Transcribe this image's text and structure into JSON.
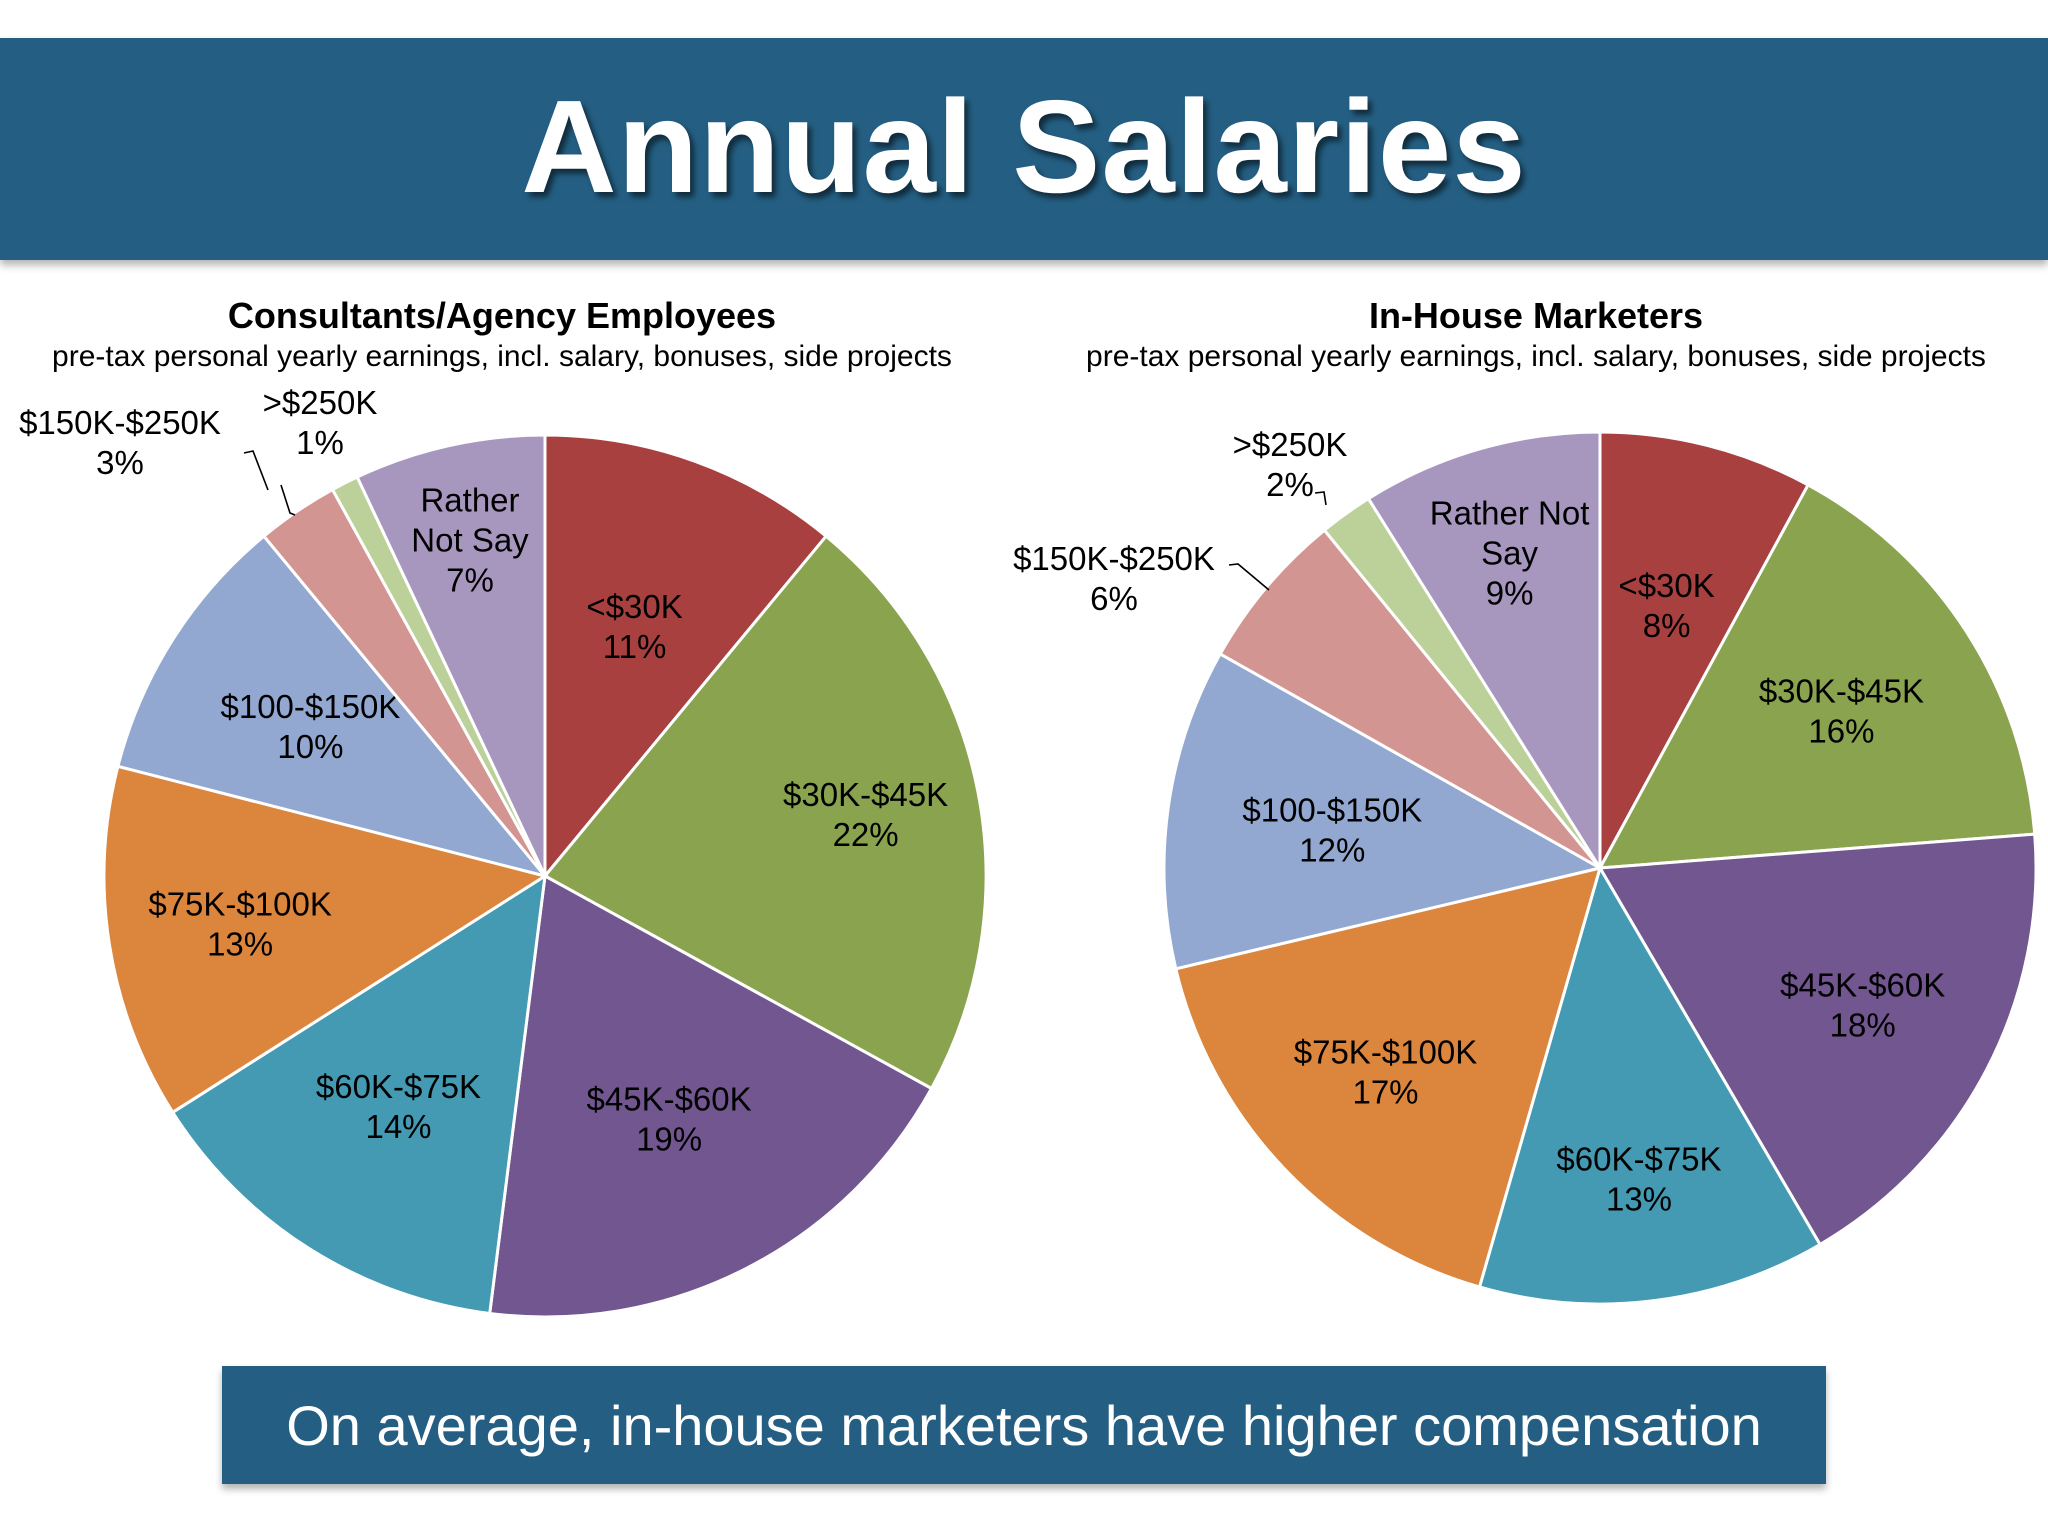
{
  "title": "Annual Salaries",
  "footer": "On average, in-house marketers have higher compensation",
  "chart_data": [
    {
      "type": "pie",
      "title": "Consultants/Agency Employees",
      "subtitle": "pre-tax personal  yearly earnings,  incl. salary, bonuses,  side projects",
      "slices": [
        {
          "label": "<$30K",
          "value": 11,
          "pct": "11%",
          "color": "#a7403f"
        },
        {
          "label": "$30K-$45K",
          "value": 22,
          "pct": "22%",
          "color": "#8aa34f"
        },
        {
          "label": "$45K-$60K",
          "value": 19,
          "pct": "19%",
          "color": "#725690"
        },
        {
          "label": "$60K-$75K",
          "value": 14,
          "pct": "14%",
          "color": "#439ab2"
        },
        {
          "label": "$75K-$100K",
          "value": 13,
          "pct": "13%",
          "color": "#db853d"
        },
        {
          "label": "$100-$150K",
          "value": 10,
          "pct": "10%",
          "color": "#93a8d1"
        },
        {
          "label": "$150K-$250K",
          "value": 3,
          "pct": "3%",
          "color": "#d39592"
        },
        {
          "label": ">$250K",
          "value": 1,
          "pct": "1%",
          "color": "#bcd099"
        },
        {
          "label": "Rather Not Say",
          "lines": [
            "Rather",
            "Not Say"
          ],
          "value": 7,
          "pct": "7%",
          "color": "#a797bf"
        }
      ]
    },
    {
      "type": "pie",
      "title": "In-House Marketers",
      "subtitle": "pre-tax personal  yearly earnings,  incl. salary, bonuses,  side projects",
      "slices": [
        {
          "label": "<$30K",
          "value": 8,
          "pct": "8%",
          "color": "#a7403f"
        },
        {
          "label": "$30K-$45K",
          "value": 16,
          "pct": "16%",
          "color": "#8aa34f"
        },
        {
          "label": "$45K-$60K",
          "value": 18,
          "pct": "18%",
          "color": "#725690"
        },
        {
          "label": "$60K-$75K",
          "value": 13,
          "pct": "13%",
          "color": "#439ab2"
        },
        {
          "label": "$75K-$100K",
          "value": 17,
          "pct": "17%",
          "color": "#db853d"
        },
        {
          "label": "$100-$150K",
          "value": 12,
          "pct": "12%",
          "color": "#93a8d1"
        },
        {
          "label": "$150K-$250K",
          "value": 6,
          "pct": "6%",
          "color": "#d39592"
        },
        {
          "label": ">$250K",
          "value": 2,
          "pct": "2%",
          "color": "#bcd099"
        },
        {
          "label": "Rather Not Say",
          "lines": [
            "Rather Not",
            "Say"
          ],
          "value": 9,
          "pct": "9%",
          "color": "#a797bf"
        }
      ]
    }
  ]
}
